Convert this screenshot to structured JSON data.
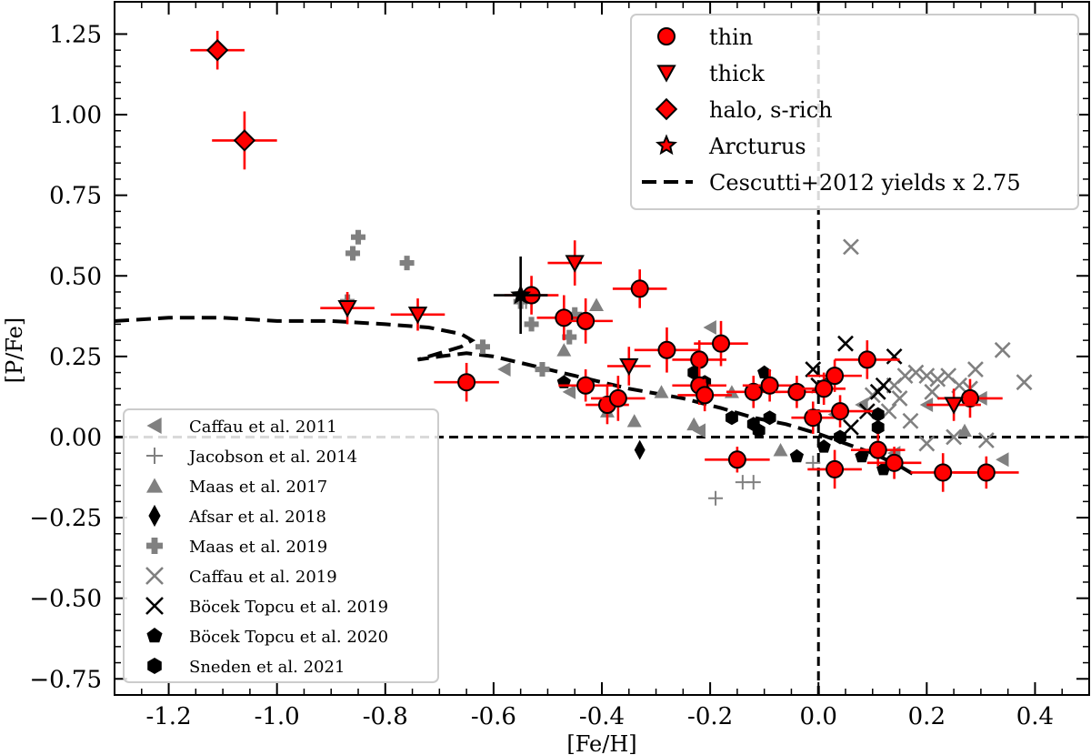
{
  "chart_data": {
    "type": "scatter",
    "xlabel": "[Fe/H]",
    "ylabel": "[P/Fe]",
    "xlim": [
      -1.3,
      0.5
    ],
    "ylim": [
      -0.8,
      1.35
    ],
    "xticks": [
      -1.2,
      -1.0,
      -0.8,
      -0.6,
      -0.4,
      -0.2,
      0.0,
      0.2,
      0.4
    ],
    "xtick_labels": [
      "-1.2",
      "-1.0",
      "-0.8",
      "-0.6",
      "-0.4",
      "-0.2",
      "0.0",
      "0.2",
      "0.4"
    ],
    "yticks": [
      1.25,
      1.0,
      0.75,
      0.5,
      0.25,
      0.0,
      -0.25,
      -0.5,
      -0.75
    ],
    "ytick_labels": [
      "1.25",
      "1.00",
      "0.75",
      "0.50",
      "0.25",
      "0.00",
      "−0.25",
      "−0.50",
      "−0.75"
    ],
    "reference_lines": {
      "x": 0.0,
      "y": 0.0
    },
    "colors": {
      "red": "#ff0000",
      "gray": "#808080",
      "black": "#000000"
    },
    "legend_main": [
      {
        "label": "thin",
        "marker": "circle"
      },
      {
        "label": "thick",
        "marker": "triangle-down"
      },
      {
        "label": "halo, s-rich",
        "marker": "diamond"
      },
      {
        "label": "Arcturus",
        "marker": "star"
      },
      {
        "label": "Cescutti+2012 yields x 2.75",
        "marker": "dashed-line"
      }
    ],
    "legend_literature": [
      {
        "label": "Caffau et al. 2011",
        "marker": "triangle-left",
        "color": "#808080"
      },
      {
        "label": "Jacobson et al. 2014",
        "marker": "plus-thin",
        "color": "#808080"
      },
      {
        "label": "Maas et al. 2017",
        "marker": "triangle-up",
        "color": "#808080"
      },
      {
        "label": "Afsar et al. 2018",
        "marker": "thin-diamond",
        "color": "#000000"
      },
      {
        "label": "Maas et al. 2019",
        "marker": "plus-filled",
        "color": "#808080"
      },
      {
        "label": "Caffau et al. 2019",
        "marker": "x",
        "color": "#808080"
      },
      {
        "label": "Böcek Topcu et al. 2019",
        "marker": "x",
        "color": "#000000"
      },
      {
        "label": "Böcek Topcu et al. 2020",
        "marker": "pentagon",
        "color": "#000000"
      },
      {
        "label": "Sneden et al. 2021",
        "marker": "hexagon",
        "color": "#000000"
      }
    ],
    "series": [
      {
        "name": "thin",
        "marker": "circle",
        "color": "#ff0000",
        "points": [
          {
            "x": -0.65,
            "y": 0.17,
            "xerr": 0.06,
            "yerr": 0.06
          },
          {
            "x": -0.53,
            "y": 0.44,
            "xerr": 0.05,
            "yerr": 0.06
          },
          {
            "x": -0.47,
            "y": 0.37,
            "xerr": 0.05,
            "yerr": 0.07
          },
          {
            "x": -0.43,
            "y": 0.36,
            "xerr": 0.05,
            "yerr": 0.07
          },
          {
            "x": -0.43,
            "y": 0.16,
            "xerr": 0.05,
            "yerr": 0.05
          },
          {
            "x": -0.39,
            "y": 0.1,
            "xerr": 0.04,
            "yerr": 0.06
          },
          {
            "x": -0.37,
            "y": 0.12,
            "xerr": 0.05,
            "yerr": 0.07
          },
          {
            "x": -0.33,
            "y": 0.46,
            "xerr": 0.05,
            "yerr": 0.06
          },
          {
            "x": -0.28,
            "y": 0.27,
            "xerr": 0.06,
            "yerr": 0.07
          },
          {
            "x": -0.22,
            "y": 0.24,
            "xerr": 0.05,
            "yerr": 0.06
          },
          {
            "x": -0.22,
            "y": 0.16,
            "xerr": 0.05,
            "yerr": 0.06
          },
          {
            "x": -0.21,
            "y": 0.13,
            "xerr": 0.05,
            "yerr": 0.05
          },
          {
            "x": -0.18,
            "y": 0.29,
            "xerr": 0.05,
            "yerr": 0.07
          },
          {
            "x": -0.15,
            "y": -0.07,
            "xerr": 0.06,
            "yerr": 0.04
          },
          {
            "x": -0.12,
            "y": 0.14,
            "xerr": 0.05,
            "yerr": 0.05
          },
          {
            "x": -0.09,
            "y": 0.16,
            "xerr": 0.05,
            "yerr": 0.05
          },
          {
            "x": -0.04,
            "y": 0.14,
            "xerr": 0.04,
            "yerr": 0.05
          },
          {
            "x": -0.01,
            "y": 0.06,
            "xerr": 0.04,
            "yerr": 0.05
          },
          {
            "x": 0.01,
            "y": 0.15,
            "xerr": 0.04,
            "yerr": 0.05
          },
          {
            "x": 0.03,
            "y": -0.1,
            "xerr": 0.05,
            "yerr": 0.06
          },
          {
            "x": 0.03,
            "y": 0.19,
            "xerr": 0.05,
            "yerr": 0.05
          },
          {
            "x": 0.04,
            "y": 0.08,
            "xerr": 0.06,
            "yerr": 0.05
          },
          {
            "x": 0.09,
            "y": 0.24,
            "xerr": 0.06,
            "yerr": 0.06
          },
          {
            "x": 0.11,
            "y": -0.04,
            "xerr": 0.05,
            "yerr": 0.05
          },
          {
            "x": 0.14,
            "y": -0.08,
            "xerr": 0.05,
            "yerr": 0.05
          },
          {
            "x": 0.23,
            "y": -0.11,
            "xerr": 0.06,
            "yerr": 0.06
          },
          {
            "x": 0.28,
            "y": 0.12,
            "xerr": 0.06,
            "yerr": 0.06
          },
          {
            "x": 0.31,
            "y": -0.11,
            "xerr": 0.06,
            "yerr": 0.05
          }
        ]
      },
      {
        "name": "thick",
        "marker": "triangle-down",
        "color": "#ff0000",
        "points": [
          {
            "x": -0.87,
            "y": 0.4,
            "xerr": 0.05,
            "yerr": 0.05
          },
          {
            "x": -0.74,
            "y": 0.38,
            "xerr": 0.05,
            "yerr": 0.05
          },
          {
            "x": -0.45,
            "y": 0.54,
            "xerr": 0.05,
            "yerr": 0.07
          },
          {
            "x": -0.35,
            "y": 0.22,
            "xerr": 0.04,
            "yerr": 0.06
          },
          {
            "x": 0.25,
            "y": 0.1,
            "xerr": 0.05,
            "yerr": 0.05
          }
        ]
      },
      {
        "name": "halo, s-rich",
        "marker": "diamond",
        "color": "#ff0000",
        "points": [
          {
            "x": -1.11,
            "y": 1.2,
            "xerr": 0.05,
            "yerr": 0.06
          },
          {
            "x": -1.06,
            "y": 0.92,
            "xerr": 0.06,
            "yerr": 0.09
          }
        ]
      },
      {
        "name": "Arcturus",
        "marker": "star",
        "color": "#000000",
        "points": [
          {
            "x": -0.55,
            "y": 0.44,
            "xerr": 0.05,
            "yerr": 0.12
          }
        ]
      },
      {
        "name": "Caffau et al. 2011",
        "marker": "triangle-left",
        "color": "#808080",
        "points": [
          {
            "x": -0.58,
            "y": 0.21
          },
          {
            "x": -0.46,
            "y": 0.14
          },
          {
            "x": -0.22,
            "y": 0.02
          },
          {
            "x": -0.2,
            "y": 0.34
          },
          {
            "x": 0.03,
            "y": 0.07
          },
          {
            "x": 0.08,
            "y": 0.1
          },
          {
            "x": 0.14,
            "y": -0.05
          },
          {
            "x": 0.2,
            "y": 0.1
          },
          {
            "x": 0.3,
            "y": 0.12
          },
          {
            "x": 0.34,
            "y": -0.07
          }
        ]
      },
      {
        "name": "Jacobson et al. 2014",
        "marker": "plus-thin",
        "color": "#808080",
        "points": [
          {
            "x": -0.54,
            "y": 0.42
          },
          {
            "x": -0.19,
            "y": -0.19
          },
          {
            "x": -0.14,
            "y": -0.14
          },
          {
            "x": -0.12,
            "y": -0.14
          },
          {
            "x": -0.01,
            "y": -0.08
          },
          {
            "x": 0.14,
            "y": -0.07
          }
        ]
      },
      {
        "name": "Maas et al. 2017",
        "marker": "triangle-up",
        "color": "#808080",
        "points": [
          {
            "x": -0.47,
            "y": 0.27
          },
          {
            "x": -0.41,
            "y": 0.41
          },
          {
            "x": -0.39,
            "y": 0.08
          },
          {
            "x": -0.34,
            "y": 0.05
          },
          {
            "x": -0.29,
            "y": 0.14
          },
          {
            "x": -0.23,
            "y": 0.04
          },
          {
            "x": -0.16,
            "y": 0.14
          },
          {
            "x": -0.07,
            "y": -0.04
          },
          {
            "x": 0.27,
            "y": 0.02
          }
        ]
      },
      {
        "name": "Afsar et al. 2018",
        "marker": "thin-diamond",
        "color": "#000000",
        "points": [
          {
            "x": -0.33,
            "y": -0.04
          }
        ]
      },
      {
        "name": "Maas et al. 2019",
        "marker": "plus-filled",
        "color": "#808080",
        "points": [
          {
            "x": -0.87,
            "y": 0.42
          },
          {
            "x": -0.86,
            "y": 0.57
          },
          {
            "x": -0.85,
            "y": 0.62
          },
          {
            "x": -0.76,
            "y": 0.54
          },
          {
            "x": -0.62,
            "y": 0.28
          },
          {
            "x": -0.55,
            "y": 0.42
          },
          {
            "x": -0.53,
            "y": 0.35
          },
          {
            "x": -0.51,
            "y": 0.21
          },
          {
            "x": -0.46,
            "y": 0.31
          },
          {
            "x": -0.45,
            "y": 0.38
          }
        ]
      },
      {
        "name": "Caffau et al. 2019",
        "marker": "x",
        "color": "#808080",
        "points": [
          {
            "x": 0.06,
            "y": 0.59
          },
          {
            "x": 0.14,
            "y": 0.16
          },
          {
            "x": 0.16,
            "y": 0.19
          },
          {
            "x": 0.18,
            "y": 0.2
          },
          {
            "x": 0.2,
            "y": 0.19
          },
          {
            "x": 0.22,
            "y": 0.18
          },
          {
            "x": 0.24,
            "y": 0.19
          },
          {
            "x": 0.26,
            "y": 0.16
          },
          {
            "x": 0.29,
            "y": 0.21
          },
          {
            "x": 0.34,
            "y": 0.27
          },
          {
            "x": 0.38,
            "y": 0.17
          },
          {
            "x": 0.17,
            "y": 0.05
          },
          {
            "x": 0.2,
            "y": -0.02
          },
          {
            "x": 0.25,
            "y": 0.0
          },
          {
            "x": 0.31,
            "y": -0.01
          },
          {
            "x": 0.1,
            "y": 0.13
          },
          {
            "x": 0.15,
            "y": 0.12
          },
          {
            "x": 0.21,
            "y": 0.14
          },
          {
            "x": 0.28,
            "y": 0.15
          },
          {
            "x": 0.13,
            "y": 0.08
          }
        ]
      },
      {
        "name": "Böcek Topcu et al. 2019",
        "marker": "x",
        "color": "#000000",
        "points": [
          {
            "x": -0.01,
            "y": 0.21
          },
          {
            "x": 0.0,
            "y": 0.16
          },
          {
            "x": 0.05,
            "y": 0.29
          },
          {
            "x": 0.09,
            "y": 0.08
          },
          {
            "x": 0.11,
            "y": 0.14
          },
          {
            "x": 0.12,
            "y": 0.16
          },
          {
            "x": 0.14,
            "y": 0.25
          },
          {
            "x": 0.06,
            "y": 0.03
          }
        ]
      },
      {
        "name": "Böcek Topcu et al. 2020",
        "marker": "pentagon",
        "color": "#000000",
        "points": [
          {
            "x": -0.47,
            "y": 0.17
          },
          {
            "x": -0.1,
            "y": 0.2
          },
          {
            "x": -0.04,
            "y": -0.06
          },
          {
            "x": 0.01,
            "y": -0.03
          },
          {
            "x": 0.08,
            "y": -0.06
          },
          {
            "x": 0.12,
            "y": -0.1
          }
        ]
      },
      {
        "name": "Sneden et al. 2021",
        "marker": "hexagon",
        "color": "#000000",
        "points": [
          {
            "x": -0.23,
            "y": 0.2
          },
          {
            "x": -0.21,
            "y": 0.17
          },
          {
            "x": -0.16,
            "y": 0.06
          },
          {
            "x": -0.12,
            "y": 0.04
          },
          {
            "x": -0.11,
            "y": 0.02
          },
          {
            "x": -0.09,
            "y": 0.06
          },
          {
            "x": 0.04,
            "y": 0.0
          },
          {
            "x": 0.11,
            "y": 0.07
          },
          {
            "x": 0.11,
            "y": 0.03
          }
        ]
      }
    ],
    "model_curve": {
      "name": "Cescutti+2012 yields x 2.75",
      "style": "dashed",
      "points": [
        [
          -1.3,
          0.36
        ],
        [
          -1.2,
          0.37
        ],
        [
          -1.1,
          0.37
        ],
        [
          -1.0,
          0.36
        ],
        [
          -0.9,
          0.36
        ],
        [
          -0.8,
          0.35
        ],
        [
          -0.72,
          0.34
        ],
        [
          -0.66,
          0.32
        ],
        [
          -0.64,
          0.3
        ],
        [
          -0.66,
          0.28
        ],
        [
          -0.7,
          0.26
        ],
        [
          -0.74,
          0.24
        ],
        [
          -0.7,
          0.25
        ],
        [
          -0.65,
          0.26
        ],
        [
          -0.6,
          0.25
        ],
        [
          -0.55,
          0.23
        ],
        [
          -0.45,
          0.19
        ],
        [
          -0.35,
          0.15
        ],
        [
          -0.25,
          0.12
        ],
        [
          -0.18,
          0.09
        ],
        [
          -0.12,
          0.06
        ],
        [
          -0.06,
          0.04
        ],
        [
          0.0,
          0.01
        ],
        [
          0.05,
          -0.02
        ],
        [
          0.1,
          -0.05
        ],
        [
          0.15,
          -0.09
        ],
        [
          0.18,
          -0.12
        ]
      ]
    }
  }
}
